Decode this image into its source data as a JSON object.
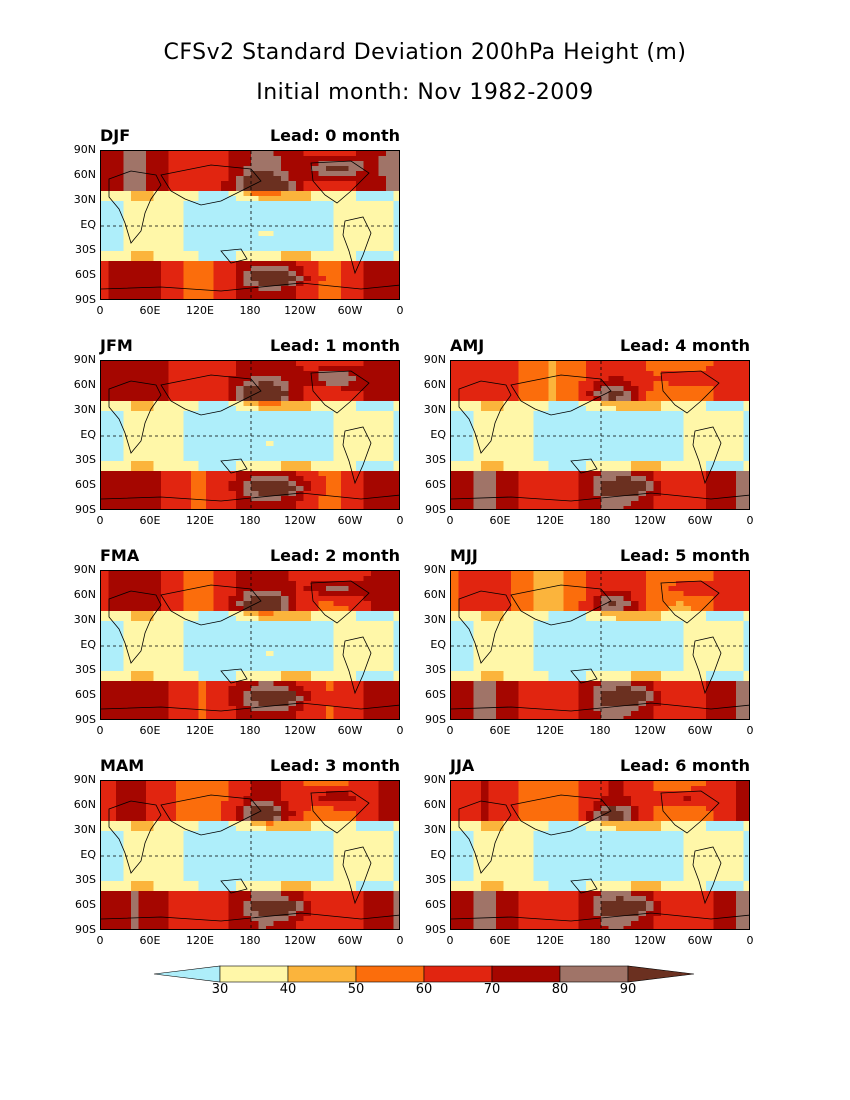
{
  "title": {
    "line1": "CFSv2 Standard Deviation 200hPa Height (m)",
    "line2": "Initial month: Nov 1982-2009"
  },
  "axes": {
    "y_ticks": [
      "90N",
      "60N",
      "30N",
      "EQ",
      "30S",
      "60S",
      "90S"
    ],
    "x_ticks": [
      "0",
      "60E",
      "120E",
      "180",
      "120W",
      "60W",
      "0"
    ]
  },
  "panels": [
    {
      "season": "DJF",
      "lead": "Lead: 0 month",
      "intensity": 1.0
    },
    {
      "season": "JFM",
      "lead": "Lead: 1 month",
      "intensity": 0.92
    },
    {
      "season": "AMJ",
      "lead": "Lead: 4 month",
      "intensity": 0.55
    },
    {
      "season": "FMA",
      "lead": "Lead: 2 month",
      "intensity": 0.82
    },
    {
      "season": "MJJ",
      "lead": "Lead: 5 month",
      "intensity": 0.5
    },
    {
      "season": "MAM",
      "lead": "Lead: 3 month",
      "intensity": 0.68
    },
    {
      "season": "JJA",
      "lead": "Lead: 6 month",
      "intensity": 0.6
    }
  ],
  "colorbar": {
    "ticks": [
      "30",
      "40",
      "50",
      "60",
      "70",
      "80",
      "90"
    ],
    "colors": [
      "#aeeefa",
      "#fff7a8",
      "#fbb43c",
      "#fb6d0c",
      "#e12510",
      "#a50600",
      "#a07468",
      "#6b3020"
    ]
  }
}
